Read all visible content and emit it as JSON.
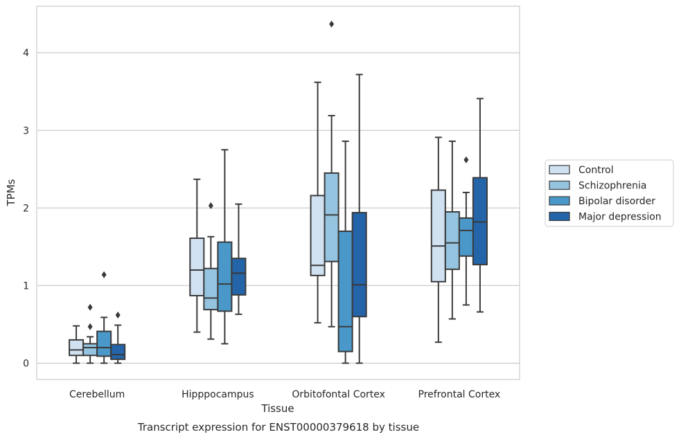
{
  "caption": "Transcript expression for ENST00000379618 by tissue",
  "chart_data": {
    "type": "box",
    "xlabel": "Tissue",
    "ylabel": "TPMs",
    "ylim": [
      -0.21,
      4.6
    ],
    "yticks": [
      0,
      1,
      2,
      3,
      4
    ],
    "grid": "horizontal",
    "legend_position": "right",
    "categories": [
      "Cerebellum",
      "Hipppocampus",
      "Orbitofontal Cortex",
      "Prefrontal Cortex"
    ],
    "series": [
      {
        "name": "Control",
        "color": "#d0e1f2",
        "boxes": [
          {
            "whislo": 0.0,
            "q1": 0.1,
            "med": 0.17,
            "q3": 0.3,
            "whishi": 0.48,
            "fliers": []
          },
          {
            "whislo": 0.4,
            "q1": 0.87,
            "med": 1.2,
            "q3": 1.61,
            "whishi": 2.37,
            "fliers": []
          },
          {
            "whislo": 0.52,
            "q1": 1.13,
            "med": 1.26,
            "q3": 2.16,
            "whishi": 3.62,
            "fliers": []
          },
          {
            "whislo": 0.27,
            "q1": 1.05,
            "med": 1.51,
            "q3": 2.23,
            "whishi": 2.91,
            "fliers": []
          }
        ]
      },
      {
        "name": "Schizophrenia",
        "color": "#94c4df",
        "boxes": [
          {
            "whislo": 0.0,
            "q1": 0.1,
            "med": 0.2,
            "q3": 0.25,
            "whishi": 0.34,
            "fliers": [
              0.47,
              0.72
            ]
          },
          {
            "whislo": 0.31,
            "q1": 0.69,
            "med": 0.84,
            "q3": 1.22,
            "whishi": 1.63,
            "fliers": [
              2.03
            ]
          },
          {
            "whislo": 0.47,
            "q1": 1.31,
            "med": 1.91,
            "q3": 2.45,
            "whishi": 3.19,
            "fliers": [
              4.37
            ]
          },
          {
            "whislo": 0.57,
            "q1": 1.21,
            "med": 1.55,
            "q3": 1.95,
            "whishi": 2.86,
            "fliers": []
          }
        ]
      },
      {
        "name": "Bipolar disorder",
        "color": "#4a98c9",
        "boxes": [
          {
            "whislo": 0.0,
            "q1": 0.09,
            "med": 0.2,
            "q3": 0.41,
            "whishi": 0.59,
            "fliers": [
              1.14
            ]
          },
          {
            "whislo": 0.25,
            "q1": 0.67,
            "med": 1.02,
            "q3": 1.56,
            "whishi": 2.75,
            "fliers": []
          },
          {
            "whislo": 0.0,
            "q1": 0.15,
            "med": 0.47,
            "q3": 1.7,
            "whishi": 2.86,
            "fliers": []
          },
          {
            "whislo": 0.75,
            "q1": 1.38,
            "med": 1.71,
            "q3": 1.87,
            "whishi": 2.2,
            "fliers": [
              2.62
            ]
          }
        ]
      },
      {
        "name": "Major depression",
        "color": "#2464a8",
        "boxes": [
          {
            "whislo": 0.0,
            "q1": 0.05,
            "med": 0.11,
            "q3": 0.24,
            "whishi": 0.49,
            "fliers": [
              0.62
            ]
          },
          {
            "whislo": 0.63,
            "q1": 0.88,
            "med": 1.16,
            "q3": 1.35,
            "whishi": 2.05,
            "fliers": []
          },
          {
            "whislo": 0.0,
            "q1": 0.6,
            "med": 1.01,
            "q3": 1.94,
            "whishi": 3.72,
            "fliers": []
          },
          {
            "whislo": 0.66,
            "q1": 1.27,
            "med": 1.82,
            "q3": 2.39,
            "whishi": 3.41,
            "fliers": []
          }
        ]
      }
    ]
  }
}
